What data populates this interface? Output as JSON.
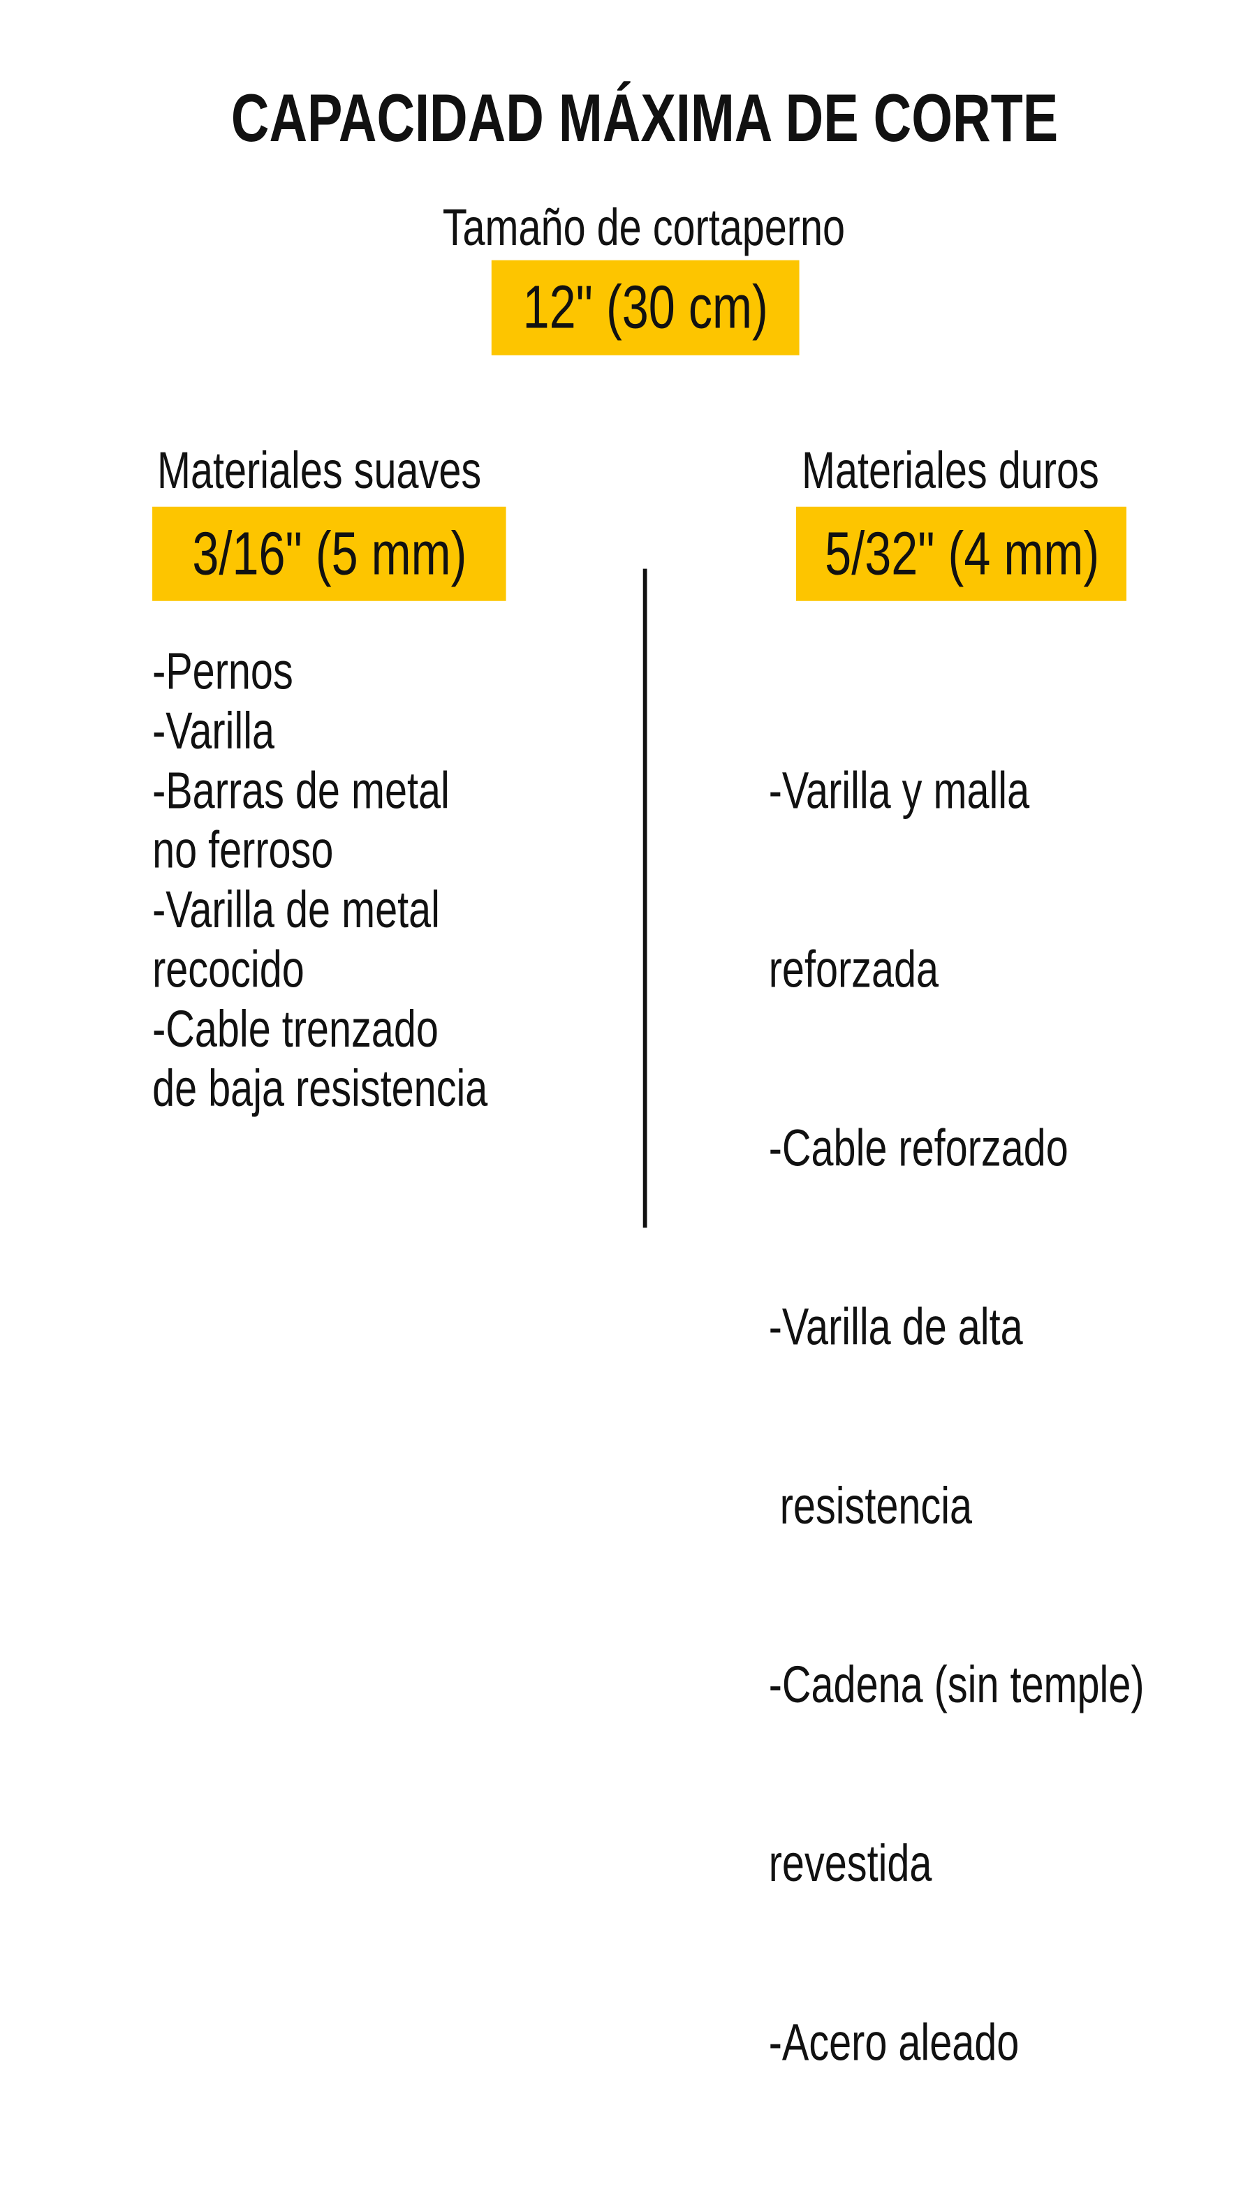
{
  "title": "CAPACIDAD MÁXIMA DE CORTE",
  "size": {
    "label": "Tamaño de cortaperno",
    "value": "12\" (30 cm)"
  },
  "soft": {
    "label": "Materiales suaves",
    "value": "3/16\" (5 mm)",
    "items": [
      "-Pernos",
      "-Varilla",
      "-Barras de metal",
      "no ferroso",
      "-Varilla de metal",
      "recocido",
      "-Cable trenzado",
      "de baja resistencia"
    ]
  },
  "hard": {
    "label": "Materiales duros",
    "value": "5/32\" (4 mm)",
    "items": [
      "-Varilla y malla",
      "reforzada",
      "-Cable reforzado",
      "-Varilla de alta",
      " resistencia",
      "-Cadena (sin temple)",
      "revestida",
      "-Acero aleado"
    ]
  },
  "colors": {
    "highlight": "#FDC500",
    "text": "#111111"
  }
}
